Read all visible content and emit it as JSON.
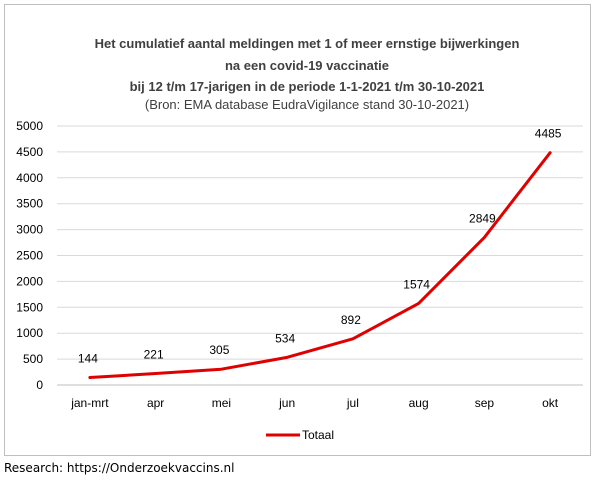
{
  "chart_data": {
    "type": "line",
    "title_lines": [
      "Het cumulatief aantal meldingen met 1 of meer ernstige bijwerkingen",
      "na een covid-19 vaccinatie",
      "bij 12 t/m 17-jarigen in de periode 1-1-2021 t/m 30-10-2021",
      "(Bron: EMA database EudraVigilance stand 30-10-2021)"
    ],
    "categories": [
      "jan-mrt",
      "apr",
      "mei",
      "jun",
      "jul",
      "aug",
      "sep",
      "okt"
    ],
    "series": [
      {
        "name": "Totaal",
        "values": [
          144,
          221,
          305,
          534,
          892,
          1574,
          2849,
          4485
        ],
        "color": "#e00000"
      }
    ],
    "ylim": [
      0,
      5000
    ],
    "yticks": [
      0,
      500,
      1000,
      1500,
      2000,
      2500,
      3000,
      3500,
      4000,
      4500,
      5000
    ],
    "grid": true,
    "data_labels": true,
    "legend_position": "bottom"
  },
  "footer": {
    "text": "Research: https://Onderzoekvaccins.nl"
  }
}
